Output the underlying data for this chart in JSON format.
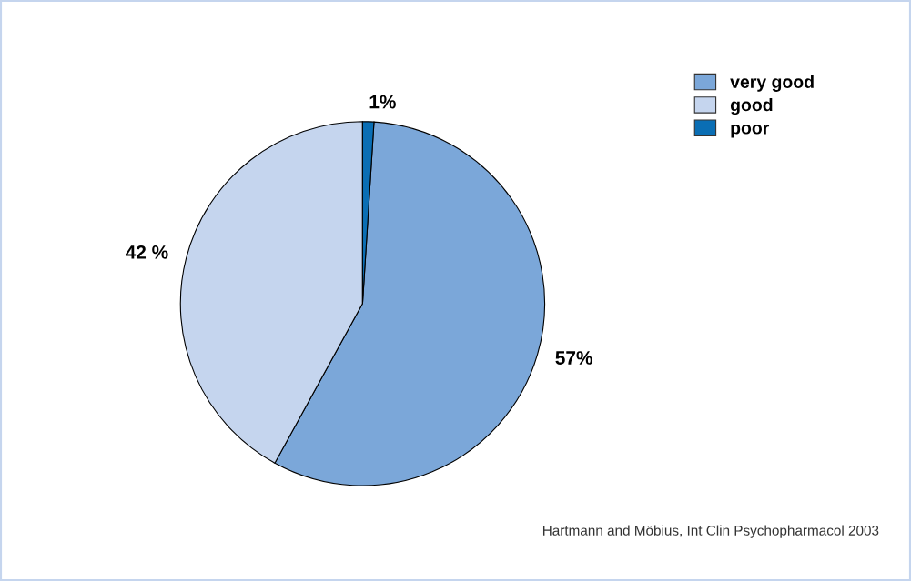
{
  "chart_data": {
    "type": "pie",
    "categories": [
      "very good",
      "good",
      "poor"
    ],
    "values": [
      57,
      42,
      1
    ],
    "value_labels": [
      "57%",
      "42 %",
      "1%"
    ],
    "colors": [
      "#7ba7d9",
      "#c5d5ee",
      "#0a6eb4"
    ],
    "legend": "top right",
    "annotations": [
      "Hartmann and Möbius, Int Clin Psychopharmacol 2003"
    ]
  }
}
